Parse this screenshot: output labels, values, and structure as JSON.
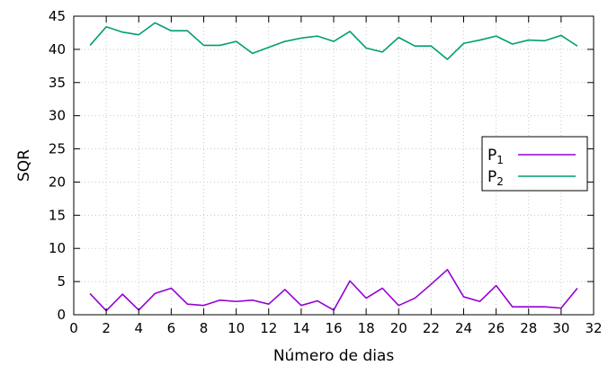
{
  "chart_data": {
    "type": "line",
    "title": "",
    "xlabel": "Número de dias",
    "ylabel": "SQR",
    "xlim": [
      0,
      32
    ],
    "ylim": [
      0,
      45
    ],
    "xticks": [
      0,
      2,
      4,
      6,
      8,
      10,
      12,
      14,
      16,
      18,
      20,
      22,
      24,
      26,
      28,
      30,
      32
    ],
    "yticks": [
      0,
      5,
      10,
      15,
      20,
      25,
      30,
      35,
      40,
      45
    ],
    "grid": true,
    "legend_position": "right",
    "x": [
      1,
      2,
      3,
      4,
      5,
      6,
      7,
      8,
      9,
      10,
      11,
      12,
      13,
      14,
      15,
      16,
      17,
      18,
      19,
      20,
      21,
      22,
      23,
      24,
      25,
      26,
      27,
      28,
      29,
      30,
      31
    ],
    "series": [
      {
        "name": "P",
        "name_subscript": "1",
        "color": "#9400d3",
        "values": [
          3.2,
          0.6,
          3.1,
          0.7,
          3.2,
          4.0,
          1.6,
          1.4,
          2.2,
          2.0,
          2.2,
          1.6,
          3.8,
          1.4,
          2.1,
          0.7,
          5.1,
          2.5,
          4.0,
          1.4,
          2.5,
          4.6,
          6.8,
          2.7,
          2.0,
          4.4,
          1.2,
          1.2,
          1.2,
          1.0,
          4.0
        ]
      },
      {
        "name": "P",
        "name_subscript": "2",
        "color": "#009e73",
        "values": [
          40.6,
          43.4,
          42.6,
          42.2,
          44.0,
          42.8,
          42.8,
          40.6,
          40.6,
          41.2,
          39.4,
          40.3,
          41.2,
          41.7,
          42.0,
          41.2,
          42.7,
          40.2,
          39.6,
          41.8,
          40.5,
          40.5,
          38.5,
          40.9,
          41.4,
          42.0,
          40.8,
          41.4,
          41.3,
          42.1,
          40.5
        ]
      }
    ]
  }
}
